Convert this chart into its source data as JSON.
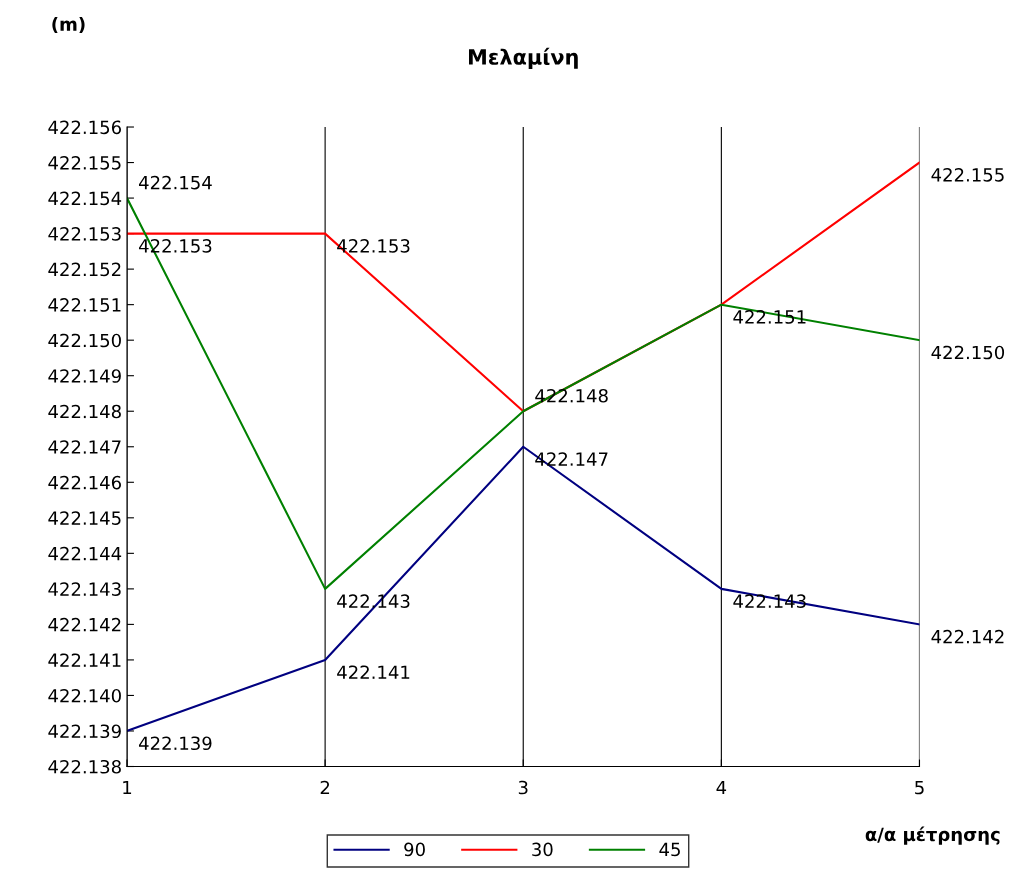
{
  "chart_data": {
    "type": "line",
    "title": "Μελαμίνη",
    "ylabel": "(m)",
    "xlabel": "α/α μέτρησης",
    "x": [
      1,
      2,
      3,
      4,
      5
    ],
    "xlim": [
      1,
      5
    ],
    "xticks": [
      1,
      2,
      3,
      4,
      5
    ],
    "ylim": [
      422.138,
      422.156
    ],
    "yticks": [
      422.138,
      422.139,
      {
        "value": 422.14,
        "label": "422.140"
      },
      422.141,
      422.142,
      422.143,
      422.144,
      422.145,
      422.146,
      422.147,
      422.148,
      422.149,
      {
        "value": 422.15,
        "label": "422.150"
      },
      422.151,
      422.152,
      422.153,
      422.154,
      422.155,
      422.156
    ],
    "grid": "x",
    "legend": "bottom",
    "marker": "none",
    "line_style": "solid",
    "series": [
      {
        "name": "90",
        "color": "#000080",
        "values": [
          422.139,
          422.141,
          422.147,
          422.143,
          422.142
        ],
        "value_labels": [
          "422.139",
          "422.141",
          "422.147",
          "422.143",
          "422.142"
        ]
      },
      {
        "name": "30",
        "color": "#ff0000",
        "values": [
          422.153,
          422.153,
          422.148,
          422.151,
          422.155
        ],
        "value_labels": [
          "422.153",
          "422.153",
          null,
          null,
          "422.155"
        ]
      },
      {
        "name": "45",
        "color": "#008000",
        "values": [
          422.154,
          422.143,
          422.148,
          422.151,
          422.15
        ],
        "value_labels": [
          "422.154",
          "422.143",
          "422.148",
          "422.151",
          "422.150"
        ]
      }
    ]
  }
}
